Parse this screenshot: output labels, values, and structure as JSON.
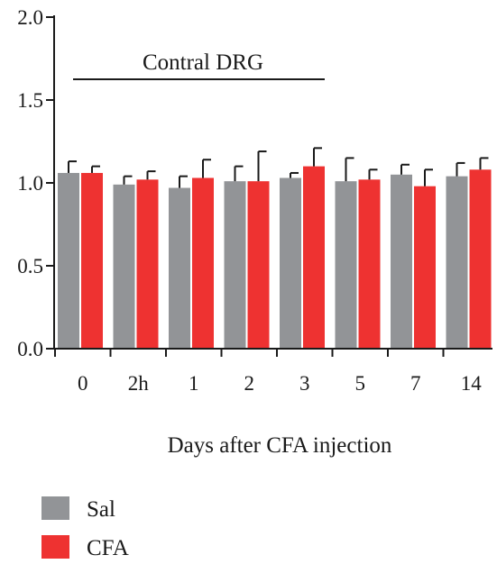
{
  "chart_data": {
    "type": "bar",
    "title": "",
    "annotation": "Contral DRG",
    "xlabel": "Days after CFA injection",
    "ylabel": "",
    "ylim": [
      0,
      2.0
    ],
    "yticks": [
      "0.0",
      "0.5",
      "1.0",
      "1.5",
      "2.0"
    ],
    "categories": [
      "0",
      "2h",
      "1",
      "2",
      "3",
      "5",
      "7",
      "14"
    ],
    "series": [
      {
        "name": "Sal",
        "color": "#929497",
        "values": [
          1.06,
          0.99,
          0.97,
          1.01,
          1.03,
          1.01,
          1.05,
          1.04
        ],
        "errors": [
          0.07,
          0.05,
          0.07,
          0.09,
          0.03,
          0.14,
          0.06,
          0.08
        ]
      },
      {
        "name": "CFA",
        "color": "#ee3231",
        "values": [
          1.06,
          1.02,
          1.03,
          1.01,
          1.1,
          1.02,
          0.98,
          1.08
        ],
        "errors": [
          0.04,
          0.05,
          0.11,
          0.18,
          0.11,
          0.06,
          0.1,
          0.07
        ]
      }
    ],
    "legend_position": "bottom-left"
  }
}
